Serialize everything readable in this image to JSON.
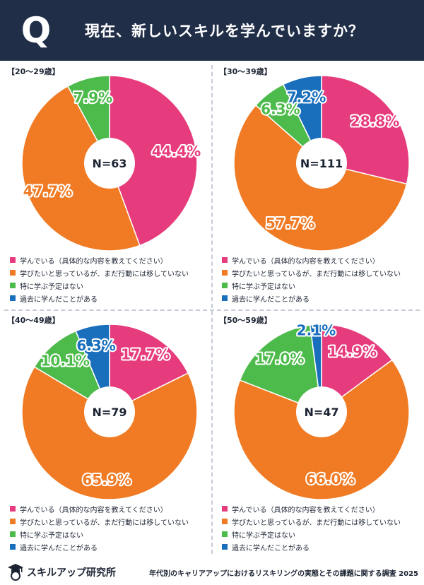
{
  "header": {
    "q_label": "Q",
    "title": "現在、新しいスキルを学んでいますか？"
  },
  "legend": {
    "items": [
      {
        "label": "学んでいる（具体的な内容を教えてください）",
        "color": "#e63c7d"
      },
      {
        "label": "学びたいと思っているが、まだ行動には移していない",
        "color": "#f07b24"
      },
      {
        "label": "特に学ぶ予定はない",
        "color": "#4dbb4b"
      },
      {
        "label": "過去に学んだことがある",
        "color": "#1a6fbd"
      }
    ]
  },
  "chart_data": [
    {
      "type": "pie",
      "title": "【20〜29歳】",
      "n_label": "N=63",
      "categories": [
        "学んでいる（具体的な内容を教えてください）",
        "学びたいと思っているが、まだ行動には移していない",
        "特に学ぶ予定はない",
        "過去に学んだことがある"
      ],
      "values": [
        44.4,
        47.7,
        7.9,
        0
      ],
      "labels": [
        "44.4%",
        "47.7%",
        "7.9%",
        ""
      ]
    },
    {
      "type": "pie",
      "title": "【30〜39歳】",
      "n_label": "N=111",
      "categories": [
        "学んでいる（具体的な内容を教えてください）",
        "学びたいと思っているが、まだ行動には移していない",
        "特に学ぶ予定はない",
        "過去に学んだことがある"
      ],
      "values": [
        28.8,
        57.7,
        6.3,
        7.2
      ],
      "labels": [
        "28.8%",
        "57.7%",
        "6.3%",
        "7.2%"
      ]
    },
    {
      "type": "pie",
      "title": "【40〜49歳】",
      "n_label": "N=79",
      "categories": [
        "学んでいる（具体的な内容を教えてください）",
        "学びたいと思っているが、まだ行動には移していない",
        "特に学ぶ予定はない",
        "過去に学んだことがある"
      ],
      "values": [
        17.7,
        65.9,
        10.1,
        6.3
      ],
      "labels": [
        "17.7%",
        "65.9%",
        "10.1%",
        "6.3%"
      ]
    },
    {
      "type": "pie",
      "title": "【50〜59歳】",
      "n_label": "N=47",
      "categories": [
        "学んでいる（具体的な内容を教えてください）",
        "学びたいと思っているが、まだ行動には移していない",
        "特に学ぶ予定はない",
        "過去に学んだことがある"
      ],
      "values": [
        14.9,
        66.0,
        17.0,
        2.1
      ],
      "labels": [
        "14.9%",
        "66.0%",
        "17.0%",
        "2.1%"
      ]
    }
  ],
  "footer": {
    "logo_text": "スキルアップ研究所",
    "source": "年代別のキャリアアップにおけるリスキリングの実態とその課題に関する調査 2025"
  }
}
